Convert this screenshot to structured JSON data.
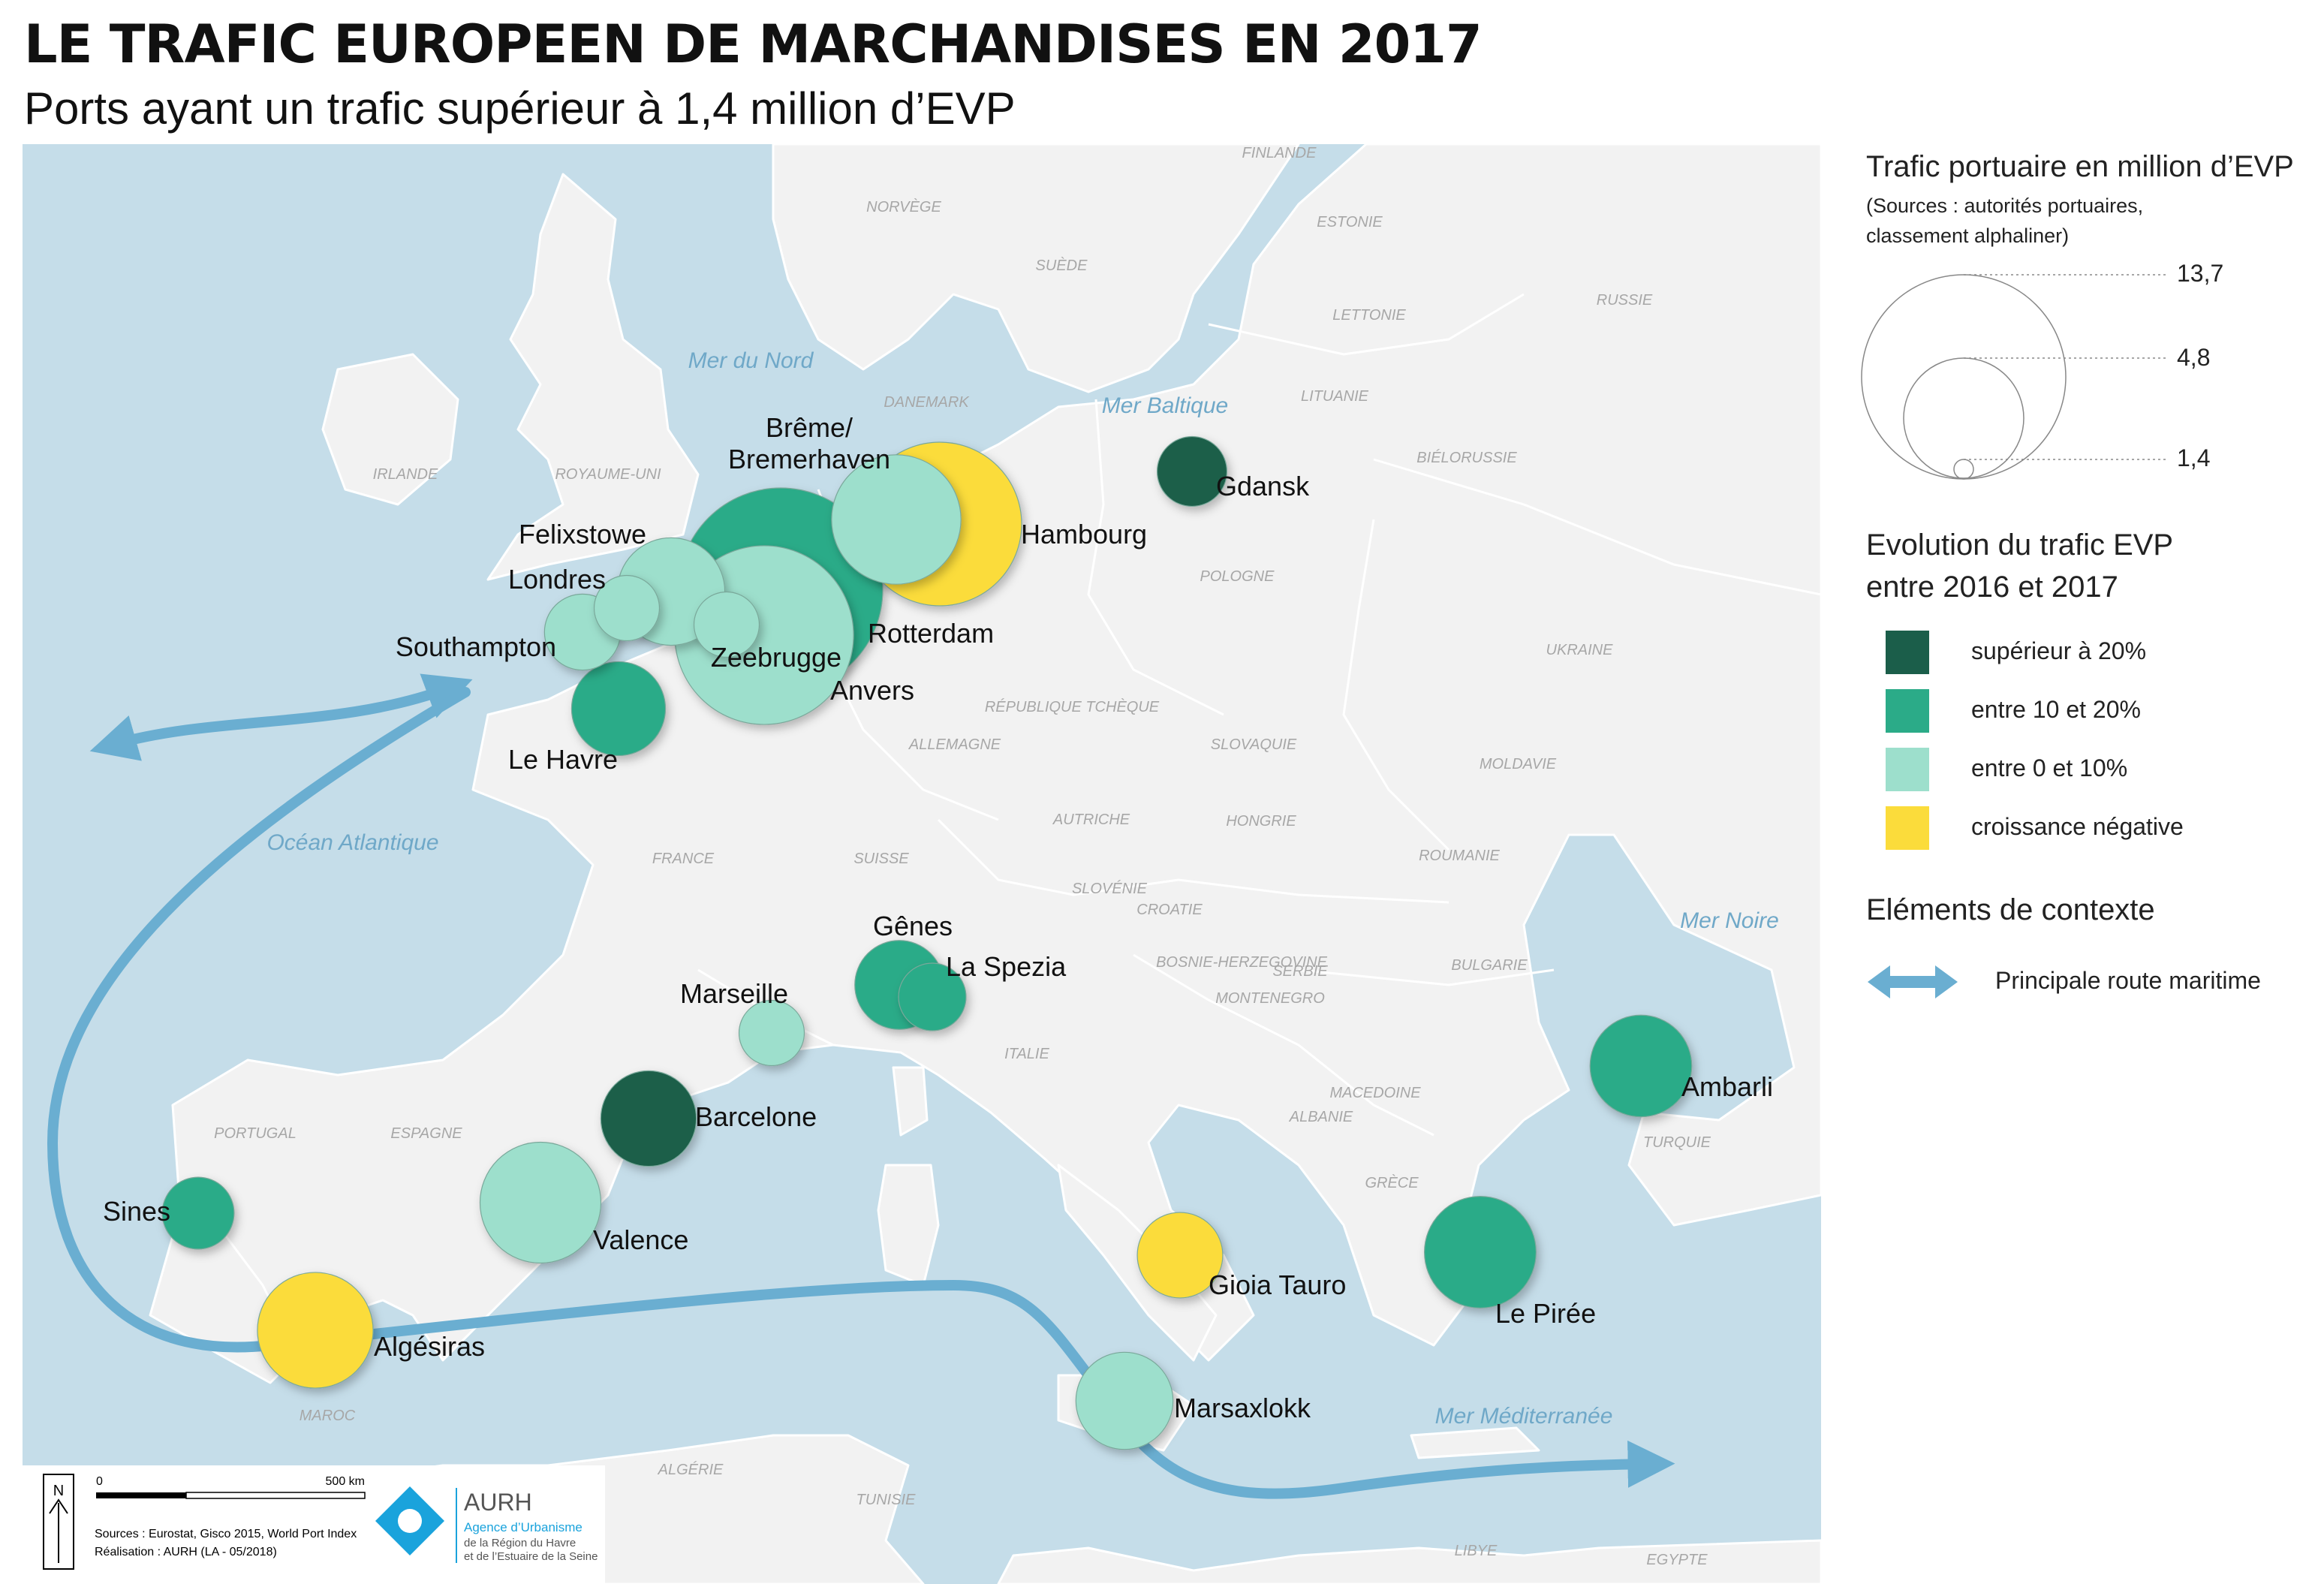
{
  "header": {
    "title": "LE TRAFIC EUROPEEN DE MARCHANDISES EN 2017",
    "subtitle": "Ports ayant un trafic supérieur à 1,4 million d’EVP"
  },
  "colors": {
    "sea": "#c5dde9",
    "land": "#f2f2f2",
    "route": "#6aaed1",
    "over20": "#1b5e4a",
    "10to20": "#2bab88",
    "0to10": "#9ddfcc",
    "negative": "#fbdc3b"
  },
  "seas": [
    "Mer du Nord",
    "Mer Baltique",
    "Océan Atlantique",
    "Mer Noire",
    "Mer Méditerranée"
  ],
  "countries": [
    "FINLANDE",
    "NORVÈGE",
    "ESTONIE",
    "SUÈDE",
    "LETTONIE",
    "RUSSIE",
    "DANEMARK",
    "LITUANIE",
    "IRLANDE",
    "ROYAUME-UNI",
    "BIÉLORUSSIE",
    "POLOGNE",
    "UKRAINE",
    "RÉPUBLIQUE TCHÈQUE",
    "ALLEMAGNE",
    "SLOVAQUIE",
    "MOLDAVIE",
    "AUTRICHE",
    "HONGRIE",
    "FRANCE",
    "SUISSE",
    "ROUMANIE",
    "SLOVÉNIE",
    "CROATIE",
    "BOSNIE-HERZEGOVINE",
    "SERBIE",
    "BULGARIE",
    "MONTENEGRO",
    "ITALIE",
    "MACEDOINE",
    "ALBANIE",
    "PORTUGAL",
    "ESPAGNE",
    "TURQUIE",
    "GRÈCE",
    "MAROC",
    "ALGÉRIE",
    "TUNISIE",
    "LIBYE",
    "EGYPTE"
  ],
  "ports": [
    {
      "name": "Rotterdam",
      "category": "10to20",
      "traffic": 13.7
    },
    {
      "name": "Anvers",
      "category": "0to10",
      "traffic": 10.5
    },
    {
      "name": "Hambourg",
      "category": "negative",
      "traffic": 8.8
    },
    {
      "name": "Brême/ Bremerhaven",
      "category": "0to10",
      "traffic": 5.5
    },
    {
      "name": "Valence",
      "category": "0to10",
      "traffic": 4.8
    },
    {
      "name": "Algésiras",
      "category": "negative",
      "traffic": 4.4
    },
    {
      "name": "Le Pirée",
      "category": "10to20",
      "traffic": 4.1
    },
    {
      "name": "Felixstowe",
      "category": "0to10",
      "traffic": 3.8
    },
    {
      "name": "Ambarli",
      "category": "10to20",
      "traffic": 3.4
    },
    {
      "name": "Marsaxlokk",
      "category": "0to10",
      "traffic": 3.1
    },
    {
      "name": "Barcelone",
      "category": "over20",
      "traffic": 3.0
    },
    {
      "name": "Gioia Tauro",
      "category": "negative",
      "traffic": 2.4
    },
    {
      "name": "Le Havre",
      "category": "10to20",
      "traffic": 2.9
    },
    {
      "name": "Gênes",
      "category": "10to20",
      "traffic": 2.6
    },
    {
      "name": "Southampton",
      "category": "0to10",
      "traffic": 1.9
    },
    {
      "name": "Sines",
      "category": "10to20",
      "traffic": 1.7
    },
    {
      "name": "Gdansk",
      "category": "over20",
      "traffic": 1.6
    },
    {
      "name": "La Spezia",
      "category": "10to20",
      "traffic": 1.5
    },
    {
      "name": "Zeebrugge",
      "category": "0to10",
      "traffic": 1.4
    },
    {
      "name": "Londres",
      "category": "0to10",
      "traffic": 1.4
    },
    {
      "name": "Marseille",
      "category": "0to10",
      "traffic": 1.4
    }
  ],
  "legend": {
    "size_title": "Trafic portuaire en million d’EVP",
    "size_source_1": "(Sources : autorités portuaires,",
    "size_source_2": "classement alphaliner)",
    "size_values": [
      "13,7",
      "4,8",
      "1,4"
    ],
    "evolution_title_1": "Evolution du trafic EVP",
    "evolution_title_2": "entre 2016 et 2017",
    "classes": [
      {
        "key": "over20",
        "label": "supérieur à 20%"
      },
      {
        "key": "10to20",
        "label": "entre 10 et 20%"
      },
      {
        "key": "0to10",
        "label": "entre 0 et 10%"
      },
      {
        "key": "negative",
        "label": "croissance négative"
      }
    ],
    "context_title": "Eléments de contexte",
    "route_label": "Principale route maritime"
  },
  "footer": {
    "north": "N",
    "scale_start": "0",
    "scale_end": "500 km",
    "sources": "Sources : Eurostat, Gisco 2015, World Port Index",
    "realisation": "Réalisation : AURH (LA - 05/2018)",
    "org_short": "AURH",
    "org_line1": "Agence d’Urbanisme",
    "org_line2": "de la Région du Havre",
    "org_line3": "et de l’Estuaire de la Seine"
  }
}
